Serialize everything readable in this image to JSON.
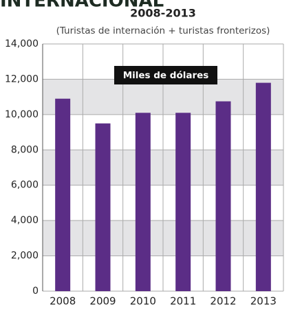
{
  "chart_data": {
    "type": "bar",
    "title": "INTERNACIONAL",
    "subtitle": "2008-2013",
    "annotations": [
      "(Turistas de internación + turistas fronterizos)",
      "Miles de dólares"
    ],
    "categories": [
      "2008",
      "2009",
      "2010",
      "2011",
      "2012",
      "2013"
    ],
    "values": [
      10900,
      9500,
      10100,
      10100,
      10750,
      11800
    ],
    "color": "#5b2d86",
    "ylim": [
      0,
      14000
    ],
    "yticks": [
      0,
      {
        "value": 2000,
        "label": "2,000"
      },
      {
        "value": 4000,
        "label": "4,000"
      },
      {
        "value": 6000,
        "label": "6,000"
      },
      {
        "value": 8000,
        "label": "8,000"
      },
      {
        "value": 10000,
        "label": "10,000"
      },
      {
        "value": 12000,
        "label": "12,000"
      },
      {
        "value": 14000,
        "label": "14,000"
      }
    ],
    "grid": true
  }
}
